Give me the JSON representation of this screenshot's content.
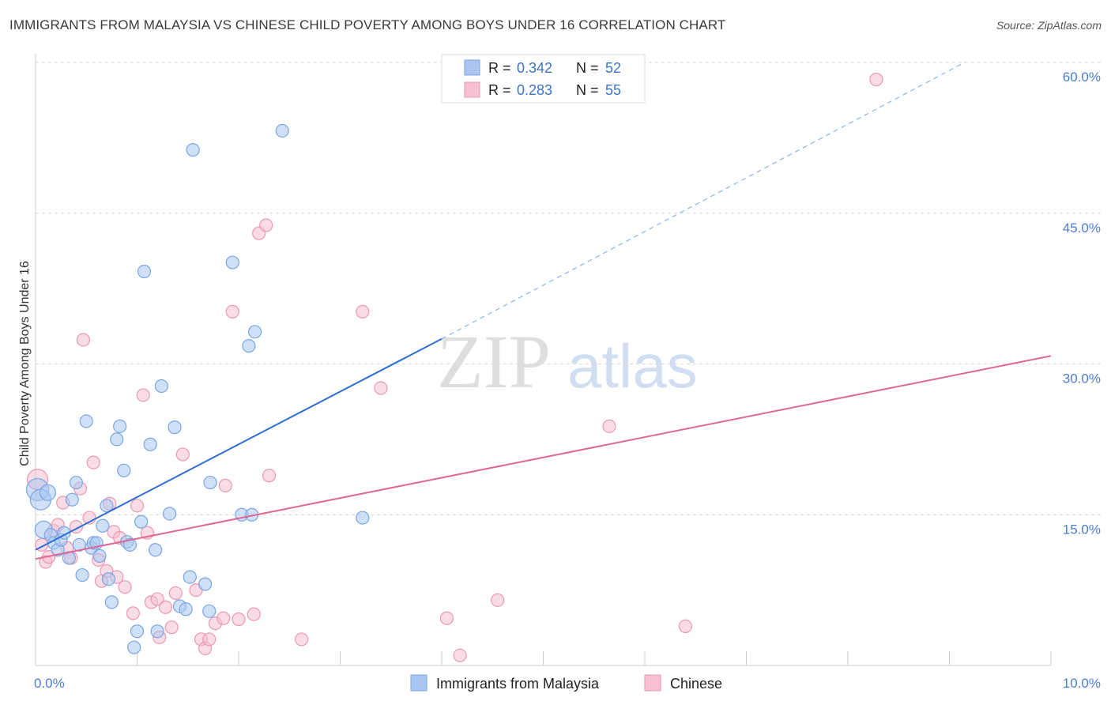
{
  "title": "IMMIGRANTS FROM MALAYSIA VS CHINESE CHILD POVERTY AMONG BOYS UNDER 16 CORRELATION CHART",
  "source": "Source: ZipAtlas.com",
  "colors": {
    "blue_fill": "#a9c6f0",
    "blue_stroke": "#7aa6e4",
    "blue_line": "#2f6fd1",
    "pink_fill": "#f6c0d2",
    "pink_stroke": "#eb98b5",
    "pink_line": "#e06694",
    "grid": "#d9d9d9",
    "tick_text": "#4a7fcf"
  },
  "legend": {
    "rows": [
      {
        "r_label": "R =",
        "r_value": "0.342",
        "n_label": "N =",
        "n_value": "52"
      },
      {
        "r_label": "R =",
        "r_value": "0.283",
        "n_label": "N =",
        "n_value": "55"
      }
    ]
  },
  "watermark": {
    "zip": "ZIP",
    "atlas": "atlas"
  },
  "chart_data": {
    "type": "scatter",
    "title": "IMMIGRANTS FROM MALAYSIA VS CHINESE CHILD POVERTY AMONG BOYS UNDER 16 CORRELATION CHART",
    "xlabel": "",
    "ylabel": "Child Poverty Among Boys Under 16",
    "xlim": [
      0,
      10
    ],
    "ylim": [
      0,
      60
    ],
    "x_ticks": [
      "0.0%",
      "10.0%"
    ],
    "y_ticks": [
      {
        "value": 15,
        "label": "15.0%"
      },
      {
        "value": 30,
        "label": "30.0%"
      },
      {
        "value": 45,
        "label": "45.0%"
      },
      {
        "value": 60,
        "label": "60.0%"
      }
    ],
    "grid": true,
    "legend_position": "top-center",
    "series": [
      {
        "name": "Immigrants from Malaysia",
        "color": "blue",
        "trend": {
          "x0": 0,
          "y0": 11.5,
          "x1": 4.0,
          "y1": 32.5,
          "dashed_to_x": 9.15,
          "dashed_to_y": 60
        },
        "points": [
          {
            "x": 0.02,
            "y": 17.5,
            "s": 14
          },
          {
            "x": 0.05,
            "y": 16.5,
            "s": 13
          },
          {
            "x": 0.08,
            "y": 13.5,
            "s": 11
          },
          {
            "x": 0.12,
            "y": 17.2,
            "s": 10
          },
          {
            "x": 0.15,
            "y": 13.0,
            "s": 8
          },
          {
            "x": 0.18,
            "y": 12.2,
            "s": 8
          },
          {
            "x": 0.22,
            "y": 11.5,
            "s": 8
          },
          {
            "x": 0.25,
            "y": 12.5,
            "s": 8
          },
          {
            "x": 0.28,
            "y": 13.2,
            "s": 8
          },
          {
            "x": 0.33,
            "y": 10.7,
            "s": 8
          },
          {
            "x": 0.36,
            "y": 16.5,
            "s": 8
          },
          {
            "x": 0.4,
            "y": 18.2,
            "s": 8
          },
          {
            "x": 0.43,
            "y": 12.0,
            "s": 8
          },
          {
            "x": 0.46,
            "y": 9.0,
            "s": 8
          },
          {
            "x": 0.5,
            "y": 24.3,
            "s": 8
          },
          {
            "x": 0.55,
            "y": 11.7,
            "s": 8
          },
          {
            "x": 0.57,
            "y": 12.2,
            "s": 8
          },
          {
            "x": 0.6,
            "y": 12.2,
            "s": 8
          },
          {
            "x": 0.63,
            "y": 10.9,
            "s": 8
          },
          {
            "x": 0.66,
            "y": 13.9,
            "s": 8
          },
          {
            "x": 0.7,
            "y": 15.9,
            "s": 8
          },
          {
            "x": 0.72,
            "y": 8.6,
            "s": 8
          },
          {
            "x": 0.75,
            "y": 6.3,
            "s": 8
          },
          {
            "x": 0.8,
            "y": 22.5,
            "s": 8
          },
          {
            "x": 0.83,
            "y": 23.8,
            "s": 8
          },
          {
            "x": 0.87,
            "y": 19.4,
            "s": 8
          },
          {
            "x": 0.9,
            "y": 12.3,
            "s": 8
          },
          {
            "x": 0.93,
            "y": 12.0,
            "s": 8
          },
          {
            "x": 0.97,
            "y": 1.8,
            "s": 8
          },
          {
            "x": 1.0,
            "y": 3.4,
            "s": 8
          },
          {
            "x": 1.04,
            "y": 14.3,
            "s": 8
          },
          {
            "x": 1.07,
            "y": 39.2,
            "s": 8
          },
          {
            "x": 1.13,
            "y": 22.0,
            "s": 8
          },
          {
            "x": 1.18,
            "y": 11.5,
            "s": 8
          },
          {
            "x": 1.2,
            "y": 3.4,
            "s": 8
          },
          {
            "x": 1.24,
            "y": 27.8,
            "s": 8
          },
          {
            "x": 1.32,
            "y": 15.1,
            "s": 8
          },
          {
            "x": 1.37,
            "y": 23.7,
            "s": 8
          },
          {
            "x": 1.42,
            "y": 5.9,
            "s": 8
          },
          {
            "x": 1.48,
            "y": 5.6,
            "s": 8
          },
          {
            "x": 1.52,
            "y": 8.8,
            "s": 8
          },
          {
            "x": 1.55,
            "y": 51.3,
            "s": 8
          },
          {
            "x": 1.67,
            "y": 8.1,
            "s": 8
          },
          {
            "x": 1.71,
            "y": 5.4,
            "s": 8
          },
          {
            "x": 1.72,
            "y": 18.2,
            "s": 8
          },
          {
            "x": 1.94,
            "y": 40.1,
            "s": 8
          },
          {
            "x": 2.03,
            "y": 15.0,
            "s": 8
          },
          {
            "x": 2.1,
            "y": 31.8,
            "s": 8
          },
          {
            "x": 2.13,
            "y": 15.0,
            "s": 8
          },
          {
            "x": 2.16,
            "y": 33.2,
            "s": 8
          },
          {
            "x": 2.43,
            "y": 53.2,
            "s": 8
          },
          {
            "x": 3.22,
            "y": 14.7,
            "s": 8
          }
        ]
      },
      {
        "name": "Chinese",
        "color": "pink",
        "trend": {
          "x0": 0,
          "y0": 10.6,
          "x1": 10,
          "y1": 30.8
        },
        "points": [
          {
            "x": 0.02,
            "y": 18.5,
            "s": 13
          },
          {
            "x": 0.06,
            "y": 12.0,
            "s": 8
          },
          {
            "x": 0.1,
            "y": 10.3,
            "s": 8
          },
          {
            "x": 0.13,
            "y": 10.8,
            "s": 8
          },
          {
            "x": 0.18,
            "y": 13.4,
            "s": 8
          },
          {
            "x": 0.22,
            "y": 14.0,
            "s": 8
          },
          {
            "x": 0.27,
            "y": 16.2,
            "s": 8
          },
          {
            "x": 0.31,
            "y": 11.7,
            "s": 8
          },
          {
            "x": 0.35,
            "y": 10.7,
            "s": 8
          },
          {
            "x": 0.4,
            "y": 13.8,
            "s": 8
          },
          {
            "x": 0.44,
            "y": 17.6,
            "s": 8
          },
          {
            "x": 0.47,
            "y": 32.4,
            "s": 8
          },
          {
            "x": 0.53,
            "y": 14.7,
            "s": 8
          },
          {
            "x": 0.57,
            "y": 20.2,
            "s": 8
          },
          {
            "x": 0.62,
            "y": 10.5,
            "s": 8
          },
          {
            "x": 0.65,
            "y": 8.4,
            "s": 8
          },
          {
            "x": 0.7,
            "y": 9.4,
            "s": 8
          },
          {
            "x": 0.73,
            "y": 16.1,
            "s": 8
          },
          {
            "x": 0.77,
            "y": 13.3,
            "s": 8
          },
          {
            "x": 0.8,
            "y": 8.8,
            "s": 8
          },
          {
            "x": 0.83,
            "y": 12.7,
            "s": 8
          },
          {
            "x": 0.88,
            "y": 7.8,
            "s": 8
          },
          {
            "x": 0.96,
            "y": 5.2,
            "s": 8
          },
          {
            "x": 1.0,
            "y": 15.9,
            "s": 8
          },
          {
            "x": 1.06,
            "y": 26.9,
            "s": 8
          },
          {
            "x": 1.1,
            "y": 13.2,
            "s": 8
          },
          {
            "x": 1.14,
            "y": 6.3,
            "s": 8
          },
          {
            "x": 1.2,
            "y": 6.6,
            "s": 8
          },
          {
            "x": 1.22,
            "y": 2.8,
            "s": 8
          },
          {
            "x": 1.28,
            "y": 5.8,
            "s": 8
          },
          {
            "x": 1.34,
            "y": 3.8,
            "s": 8
          },
          {
            "x": 1.38,
            "y": 7.2,
            "s": 8
          },
          {
            "x": 1.45,
            "y": 21.0,
            "s": 8
          },
          {
            "x": 1.58,
            "y": 7.5,
            "s": 8
          },
          {
            "x": 1.63,
            "y": 2.6,
            "s": 8
          },
          {
            "x": 1.67,
            "y": 1.7,
            "s": 8
          },
          {
            "x": 1.71,
            "y": 2.6,
            "s": 8
          },
          {
            "x": 1.77,
            "y": 4.2,
            "s": 8
          },
          {
            "x": 1.85,
            "y": 4.7,
            "s": 8
          },
          {
            "x": 1.87,
            "y": 17.9,
            "s": 8
          },
          {
            "x": 1.94,
            "y": 35.2,
            "s": 8
          },
          {
            "x": 2.0,
            "y": 4.6,
            "s": 8
          },
          {
            "x": 2.15,
            "y": 5.1,
            "s": 8
          },
          {
            "x": 2.2,
            "y": 43.0,
            "s": 8
          },
          {
            "x": 2.27,
            "y": 43.8,
            "s": 8
          },
          {
            "x": 2.3,
            "y": 18.9,
            "s": 8
          },
          {
            "x": 2.62,
            "y": 2.6,
            "s": 8
          },
          {
            "x": 3.22,
            "y": 35.2,
            "s": 8
          },
          {
            "x": 3.4,
            "y": 27.6,
            "s": 8
          },
          {
            "x": 4.05,
            "y": 4.7,
            "s": 8
          },
          {
            "x": 4.18,
            "y": 1.0,
            "s": 8
          },
          {
            "x": 4.55,
            "y": 6.5,
            "s": 8
          },
          {
            "x": 5.65,
            "y": 23.8,
            "s": 8
          },
          {
            "x": 6.4,
            "y": 3.9,
            "s": 8
          },
          {
            "x": 8.28,
            "y": 58.3,
            "s": 8
          }
        ]
      }
    ]
  }
}
